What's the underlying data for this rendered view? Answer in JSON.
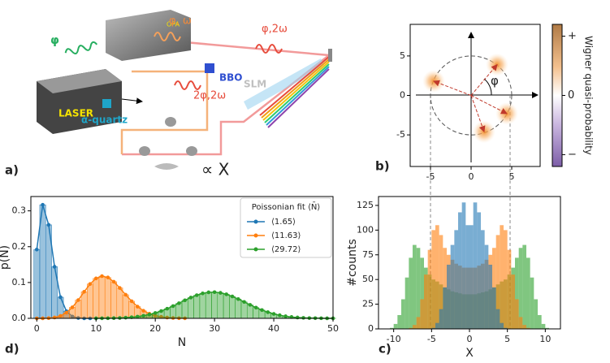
{
  "panel_labels": [
    "a)",
    "b)",
    "c)",
    "d)"
  ],
  "diagram": {
    "laser": "LASER",
    "opa": "OPA",
    "beam_green": "φ",
    "beam_orange": "φ, ω",
    "beam_red_top": "φ,2ω",
    "beam_red_mid": "2φ,2ω",
    "bbo": "BBO",
    "slm": "SLM",
    "quartz": "α-quartz",
    "detector": "∝ X"
  },
  "chart_data": [
    {
      "type": "scatter",
      "xlim": [
        -7.5,
        8.5
      ],
      "ylim": [
        -9,
        9
      ],
      "xticks": [
        -5,
        0,
        5
      ],
      "yticks": [
        -5,
        0,
        5
      ],
      "x": [
        3.2,
        -4.6,
        4.4,
        1.6
      ],
      "y": [
        3.9,
        1.8,
        -2.3,
        -4.6
      ],
      "color": "#f28c28",
      "circle_radius": 5,
      "angle_label": "φ",
      "colorbar": {
        "label": "Wigner quasi-probability",
        "clim": [
          -1.2,
          1.2
        ],
        "ticks": [
          {
            "value": 1,
            "label": "+"
          },
          0,
          {
            "value": -1,
            "label": "−"
          }
        ]
      }
    },
    {
      "type": "histogram",
      "xlabel": "X",
      "ylabel": "#counts",
      "xlim": [
        -12,
        12
      ],
      "ylim": [
        0,
        134
      ],
      "xticks": [
        -10,
        -5,
        0,
        5,
        10
      ],
      "yticks": [
        0,
        25,
        50,
        75,
        100,
        125
      ],
      "bins": [
        -11,
        -10.5,
        -10,
        -9.5,
        -9,
        -8.5,
        -8,
        -7.5,
        -7,
        -6.5,
        -6,
        -5.5,
        -5,
        -4.5,
        -4,
        -3.5,
        -3,
        -2.5,
        -2,
        -1.5,
        -1,
        -0.5,
        0,
        0.5,
        1,
        1.5,
        2,
        2.5,
        3,
        3.5,
        4,
        4.5,
        5,
        5.5,
        6,
        6.5,
        7,
        7.5,
        8,
        8.5,
        9,
        9.5,
        10,
        10.5,
        11
      ],
      "series": [
        {
          "color": "#2ca02c",
          "values": [
            0,
            1,
            5,
            14,
            30,
            52,
            72,
            85,
            82,
            72,
            62,
            55,
            50,
            48,
            45,
            42,
            40,
            38,
            37,
            36,
            35,
            35,
            35,
            35,
            36,
            37,
            38,
            40,
            42,
            45,
            48,
            50,
            55,
            62,
            72,
            82,
            85,
            72,
            52,
            30,
            14,
            5,
            1,
            0
          ]
        },
        {
          "color": "#ff7f0e",
          "values": [
            0,
            0,
            0,
            0,
            0,
            0,
            1,
            4,
            12,
            30,
            55,
            80,
            100,
            105,
            95,
            82,
            75,
            70,
            66,
            64,
            62,
            62,
            62,
            62,
            64,
            66,
            70,
            75,
            82,
            95,
            105,
            100,
            80,
            55,
            30,
            12,
            4,
            1,
            0,
            0,
            0,
            0,
            0,
            0
          ]
        },
        {
          "color": "#1f77b4",
          "values": [
            0,
            0,
            0,
            0,
            0,
            0,
            0,
            0,
            0,
            0,
            0,
            0,
            1,
            6,
            20,
            42,
            65,
            85,
            100,
            118,
            128,
            105,
            105,
            128,
            118,
            100,
            85,
            65,
            42,
            20,
            6,
            1,
            0,
            0,
            0,
            0,
            0,
            0,
            0,
            0,
            0,
            0,
            0,
            0
          ]
        }
      ]
    },
    {
      "type": "bar",
      "xlabel": "N",
      "ylabel": "p(N)",
      "xlim": [
        -1,
        50
      ],
      "ylim": [
        0,
        0.34
      ],
      "xticks": [
        0,
        10,
        20,
        30,
        40,
        50
      ],
      "yticks": [
        {
          "value": 0,
          "label": "0.0"
        },
        {
          "value": 0.1,
          "label": "0.1"
        },
        {
          "value": 0.2,
          "label": "0.2"
        },
        {
          "value": 0.3,
          "label": "0.3"
        }
      ],
      "legend_title": "Poissonian fit ⟨N̄⟩",
      "legend": "upper right",
      "series": [
        {
          "name": "⟨1.65⟩",
          "color": "#1f77b4",
          "x": [
            0,
            1,
            2,
            3,
            4,
            5,
            6,
            7,
            8,
            9
          ],
          "values": [
            0.192,
            0.317,
            0.261,
            0.144,
            0.059,
            0.02,
            0.005,
            0.001,
            0,
            0
          ]
        },
        {
          "name": "⟨11.63⟩",
          "color": "#ff7f0e",
          "x": [
            0,
            1,
            2,
            3,
            4,
            5,
            6,
            7,
            8,
            9,
            10,
            11,
            12,
            13,
            14,
            15,
            16,
            17,
            18,
            19,
            20,
            21,
            22,
            23,
            24,
            25
          ],
          "values": [
            8.9e-06,
            0.000104,
            0.000604,
            0.00234,
            0.00681,
            0.0158,
            0.0307,
            0.051,
            0.0741,
            0.0958,
            0.1114,
            0.1178,
            0.1141,
            0.1021,
            0.0848,
            0.0658,
            0.0478,
            0.0327,
            0.0211,
            0.0129,
            0.0075,
            0.0042,
            0.0022,
            0.0011,
            0.0005,
            0.0002
          ]
        },
        {
          "name": "⟨29.72⟩",
          "color": "#2ca02c",
          "x": [
            10,
            11,
            12,
            13,
            14,
            15,
            16,
            17,
            18,
            19,
            20,
            21,
            22,
            23,
            24,
            25,
            26,
            27,
            28,
            29,
            30,
            31,
            32,
            33,
            34,
            35,
            36,
            37,
            38,
            39,
            40,
            41,
            42,
            43,
            44,
            45,
            46,
            47,
            48,
            49,
            50
          ],
          "values": [
            0.0001,
            0.0002,
            0.0004,
            0.0007,
            0.0011,
            0.0019,
            0.0031,
            0.0048,
            0.0073,
            0.0106,
            0.0149,
            0.0204,
            0.0269,
            0.0342,
            0.0422,
            0.0503,
            0.058,
            0.0646,
            0.0696,
            0.0726,
            0.0731,
            0.0712,
            0.0671,
            0.0611,
            0.0538,
            0.0458,
            0.0377,
            0.03,
            0.0231,
            0.0172,
            0.0124,
            0.0086,
            0.0058,
            0.0038,
            0.0024,
            0.0014,
            0.0008,
            0.0005,
            0.0003,
            0.0001,
            0.0001
          ]
        }
      ]
    }
  ]
}
